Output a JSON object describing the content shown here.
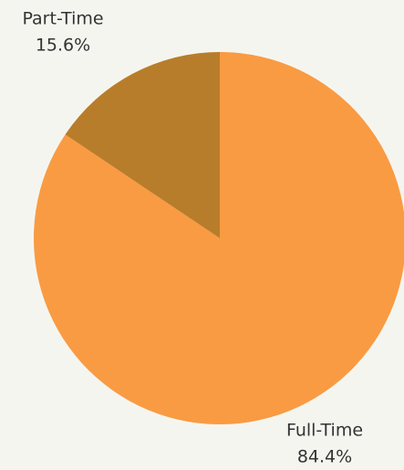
{
  "chart_data": {
    "type": "pie",
    "categories": [
      "Full-Time",
      "Part-Time"
    ],
    "values": [
      84.4,
      15.6
    ],
    "value_labels": [
      "84.4%",
      "15.6%"
    ],
    "colors": [
      "#f99b42",
      "#b87d2a"
    ]
  }
}
